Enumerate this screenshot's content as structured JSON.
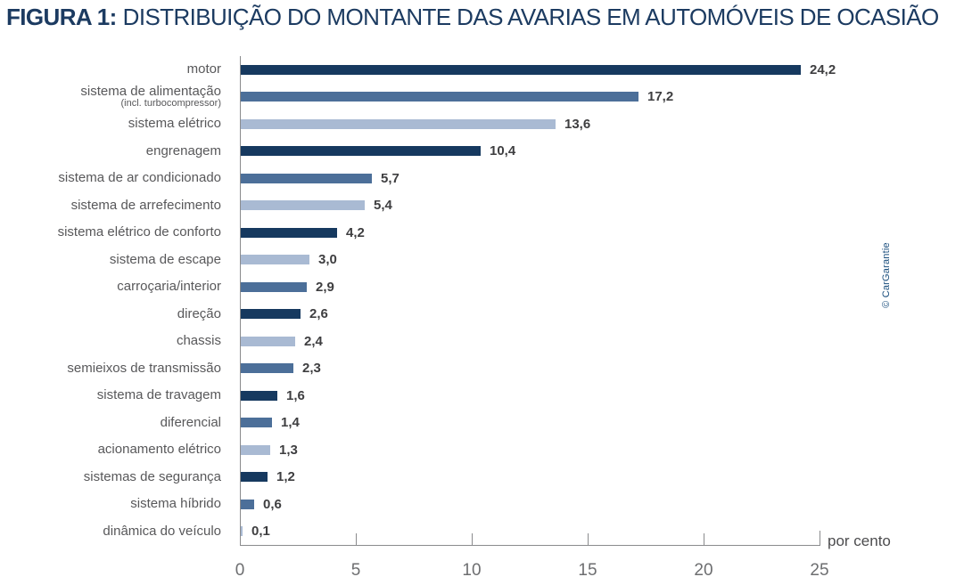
{
  "title": {
    "prefix": "FIGURA 1:",
    "text": "DISTRIBUIÇÃO DO MONTANTE DAS AVARIAS EM AUTOMÓVEIS DE OCASIÃO"
  },
  "credit": "© CarGarantie",
  "axis": {
    "unit_label": "por cento",
    "tick_labels": [
      "0",
      "5",
      "10",
      "15",
      "20",
      "25"
    ]
  },
  "colors": {
    "bar_dark": "#16395F",
    "bar_medium": "#4C6F99",
    "bar_light": "#A9BAD3",
    "title_text": "#1C3B61",
    "category_text": "#58585A",
    "value_text": "#3E3E40",
    "axis_line": "#8A8B8D",
    "tick_text": "#6D6E70",
    "credit_text": "#1A4E7D"
  },
  "chart_data": {
    "type": "bar",
    "orientation": "horizontal",
    "title": "FIGURA 1: DISTRIBUIÇÃO DO MONTANTE DAS AVARIAS EM AUTOMÓVEIS DE OCASIÃO",
    "xlabel": "por cento",
    "ylabel": "",
    "xlim": [
      0,
      25
    ],
    "xticks": [
      0,
      5,
      10,
      15,
      20,
      25
    ],
    "grid": false,
    "legend": false,
    "categories": [
      {
        "label": "motor",
        "sublabel": ""
      },
      {
        "label": "sistema de alimentação",
        "sublabel": "(incl. turbocompressor)"
      },
      {
        "label": "sistema elétrico",
        "sublabel": ""
      },
      {
        "label": "engrenagem",
        "sublabel": ""
      },
      {
        "label": "sistema de ar condicionado",
        "sublabel": ""
      },
      {
        "label": "sistema de arrefecimento",
        "sublabel": ""
      },
      {
        "label": "sistema elétrico de conforto",
        "sublabel": ""
      },
      {
        "label": "sistema de escape",
        "sublabel": ""
      },
      {
        "label": "carroçaria/interior",
        "sublabel": ""
      },
      {
        "label": "direção",
        "sublabel": ""
      },
      {
        "label": "chassis",
        "sublabel": ""
      },
      {
        "label": "semieixos de transmissão",
        "sublabel": ""
      },
      {
        "label": "sistema de travagem",
        "sublabel": ""
      },
      {
        "label": "diferencial",
        "sublabel": ""
      },
      {
        "label": "acionamento elétrico",
        "sublabel": ""
      },
      {
        "label": "sistemas de segurança",
        "sublabel": ""
      },
      {
        "label": "sistema híbrido",
        "sublabel": ""
      },
      {
        "label": "dinâmica do veículo",
        "sublabel": ""
      }
    ],
    "values": [
      24.2,
      17.2,
      13.6,
      10.4,
      5.7,
      5.4,
      4.2,
      3.0,
      2.9,
      2.6,
      2.4,
      2.3,
      1.6,
      1.4,
      1.3,
      1.2,
      0.6,
      0.1
    ],
    "value_labels": [
      "24,2",
      "17,2",
      "13,6",
      "10,4",
      "5,7",
      "5,4",
      "4,2",
      "3,0",
      "2,9",
      "2,6",
      "2,4",
      "2,3",
      "1,6",
      "1,4",
      "1,3",
      "1,2",
      "0,6",
      "0,1"
    ],
    "bar_colors": [
      "bar_dark",
      "bar_medium",
      "bar_light",
      "bar_dark",
      "bar_medium",
      "bar_light",
      "bar_dark",
      "bar_light",
      "bar_medium",
      "bar_dark",
      "bar_light",
      "bar_medium",
      "bar_dark",
      "bar_medium",
      "bar_light",
      "bar_dark",
      "bar_medium",
      "bar_light"
    ]
  }
}
